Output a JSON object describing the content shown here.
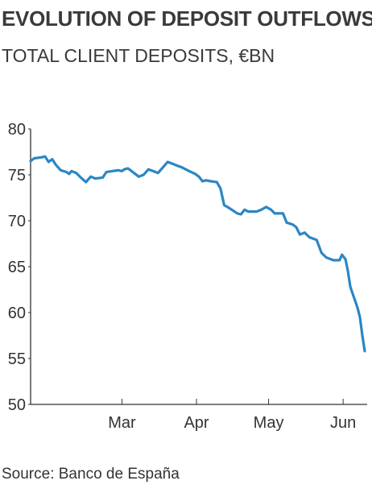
{
  "title": "EVOLUTION OF DEPOSIT OUTFLOWS",
  "subtitle": "TOTAL CLIENT DEPOSITS, €BN",
  "source": "Source: Banco de España",
  "colors": {
    "line": "#2b86c5",
    "axis": "#333333",
    "text": "#333333"
  },
  "chart_data": {
    "type": "line",
    "title": "EVOLUTION OF DEPOSIT OUTFLOWS",
    "subtitle": "TOTAL CLIENT DEPOSITS, €BN",
    "xlabel": "",
    "ylabel": "",
    "ylim": [
      50,
      80
    ],
    "yticks": [
      50,
      55,
      60,
      65,
      70,
      75,
      80
    ],
    "xticks": [
      {
        "label": "Mar",
        "x": 38
      },
      {
        "label": "Apr",
        "x": 69
      },
      {
        "label": "May",
        "x": 99
      },
      {
        "label": "Jun",
        "x": 130
      }
    ],
    "grid": false,
    "series": [
      {
        "values": [
          [
            0,
            76.5
          ],
          [
            1.5,
            76.8
          ],
          [
            4.5,
            76.9
          ],
          [
            6,
            77.0
          ],
          [
            7.5,
            76.4
          ],
          [
            9,
            76.7
          ],
          [
            10.5,
            76.1
          ],
          [
            12.5,
            75.5
          ],
          [
            15,
            75.3
          ],
          [
            16,
            75.1
          ],
          [
            17,
            75.4
          ],
          [
            19,
            75.2
          ],
          [
            20.5,
            74.8
          ],
          [
            23,
            74.2
          ],
          [
            25,
            74.8
          ],
          [
            27,
            74.6
          ],
          [
            30,
            74.7
          ],
          [
            31.5,
            75.3
          ],
          [
            34,
            75.4
          ],
          [
            36.5,
            75.5
          ],
          [
            38,
            75.4
          ],
          [
            39,
            75.6
          ],
          [
            40.5,
            75.7
          ],
          [
            43,
            75.2
          ],
          [
            45,
            74.8
          ],
          [
            47,
            75.0
          ],
          [
            49,
            75.6
          ],
          [
            51,
            75.4
          ],
          [
            53,
            75.2
          ],
          [
            55,
            75.8
          ],
          [
            57,
            76.4
          ],
          [
            59,
            76.2
          ],
          [
            61,
            76.0
          ],
          [
            63,
            75.8
          ],
          [
            66,
            75.4
          ],
          [
            68.5,
            75.1
          ],
          [
            70,
            74.8
          ],
          [
            71.5,
            74.3
          ],
          [
            73,
            74.4
          ],
          [
            75,
            74.3
          ],
          [
            77.5,
            74.2
          ],
          [
            79,
            73.5
          ],
          [
            80.5,
            71.7
          ],
          [
            82.5,
            71.4
          ],
          [
            86,
            70.8
          ],
          [
            87.5,
            70.7
          ],
          [
            89,
            71.2
          ],
          [
            90.5,
            71.0
          ],
          [
            94,
            71.0
          ],
          [
            96,
            71.2
          ],
          [
            98,
            71.5
          ],
          [
            100,
            71.2
          ],
          [
            101.5,
            70.8
          ],
          [
            105,
            70.8
          ],
          [
            106.5,
            69.8
          ],
          [
            109,
            69.6
          ],
          [
            110.5,
            69.3
          ],
          [
            112,
            68.5
          ],
          [
            114,
            68.7
          ],
          [
            116,
            68.2
          ],
          [
            119,
            67.9
          ],
          [
            121,
            66.5
          ],
          [
            123,
            66.0
          ],
          [
            126,
            65.7
          ],
          [
            128.5,
            65.7
          ],
          [
            129.5,
            66.3
          ],
          [
            131,
            65.8
          ],
          [
            132,
            64.5
          ],
          [
            133,
            62.8
          ],
          [
            136,
            60.5
          ],
          [
            137,
            59.5
          ],
          [
            138,
            57.5
          ],
          [
            139,
            55.8
          ]
        ]
      }
    ]
  }
}
